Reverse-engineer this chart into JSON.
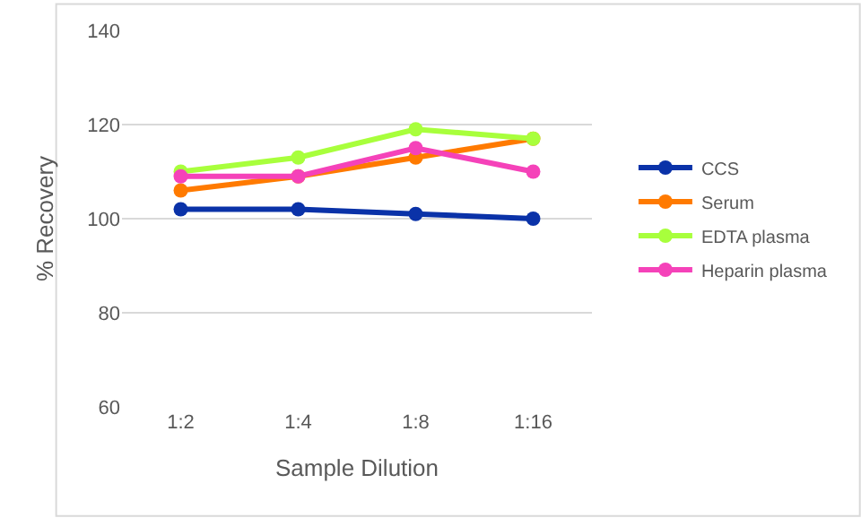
{
  "chart_data": {
    "type": "line",
    "xlabel": "Sample Dilution",
    "ylabel": "% Recovery",
    "categories": [
      "1:2",
      "1:4",
      "1:8",
      "1:16"
    ],
    "series": [
      {
        "name": "CCS",
        "color": "#0a32a8",
        "values": [
          102,
          102,
          101,
          100
        ]
      },
      {
        "name": "Serum",
        "color": "#ff7a00",
        "values": [
          106,
          109,
          113,
          117
        ]
      },
      {
        "name": "EDTA plasma",
        "color": "#a8ff3c",
        "values": [
          110,
          113,
          119,
          117
        ]
      },
      {
        "name": "Heparin plasma",
        "color": "#f542b9",
        "values": [
          109,
          109,
          115,
          110
        ]
      }
    ],
    "ylim": [
      60,
      140
    ],
    "yticks": [
      60,
      80,
      100,
      120,
      140
    ],
    "grid": "y",
    "legend": "right",
    "marker": "circle",
    "line_style": "solid"
  }
}
